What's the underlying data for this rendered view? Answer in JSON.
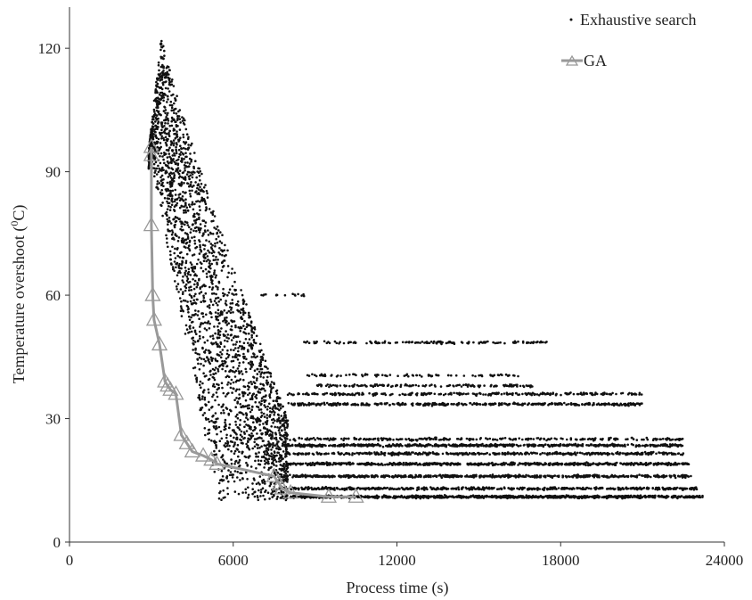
{
  "chart_data": {
    "type": "scatter",
    "title": "",
    "xlabel": "Process time (s)",
    "ylabel_main": "Temperature overshoot (",
    "ylabel_sup": "0",
    "ylabel_end": "C)",
    "xlim": [
      0,
      24000
    ],
    "ylim": [
      0,
      130
    ],
    "x_ticks": [
      0,
      6000,
      12000,
      18000,
      24000
    ],
    "y_ticks": [
      0,
      30,
      60,
      90,
      120
    ],
    "x_tick_labels": [
      "0",
      "6000",
      "12000",
      "18000",
      "24000"
    ],
    "y_tick_labels": [
      "0",
      "30",
      "60",
      "90",
      "120"
    ],
    "grid": false,
    "legend_position": "top-right",
    "series": [
      {
        "name": "Exhaustive search",
        "marker": "dot",
        "color": "#111111",
        "clusters": [
          {
            "desc": "main spread",
            "x_range": [
              2900,
              8000
            ],
            "y_range": [
              10,
              123
            ],
            "count": 2600
          },
          {
            "desc": "band",
            "x_range": [
              7800,
              23200
            ],
            "y_level": 11,
            "count": 900
          },
          {
            "desc": "band",
            "x_range": [
              7800,
              23000
            ],
            "y_level": 13,
            "count": 500
          },
          {
            "desc": "band",
            "x_range": [
              7800,
              22800
            ],
            "y_level": 16,
            "count": 600
          },
          {
            "desc": "band",
            "x_range": [
              7800,
              22700
            ],
            "y_level": 19,
            "count": 600
          },
          {
            "desc": "band",
            "x_range": [
              7800,
              22500
            ],
            "y_level": 21.5,
            "count": 450
          },
          {
            "desc": "band",
            "x_range": [
              7800,
              22500
            ],
            "y_level": 23.5,
            "count": 600
          },
          {
            "desc": "band",
            "x_range": [
              7800,
              22500
            ],
            "y_level": 25,
            "count": 250
          },
          {
            "desc": "band",
            "x_range": [
              8000,
              21000
            ],
            "y_level": 33.5,
            "count": 400
          },
          {
            "desc": "band",
            "x_range": [
              8000,
              21000
            ],
            "y_level": 36,
            "count": 250
          },
          {
            "desc": "band",
            "x_range": [
              9000,
              17000
            ],
            "y_level": 38,
            "count": 140
          },
          {
            "desc": "band",
            "x_range": [
              8500,
              16500
            ],
            "y_level": 40.5,
            "count": 90
          },
          {
            "desc": "band",
            "x_range": [
              8500,
              17500
            ],
            "y_level": 48.5,
            "count": 140
          },
          {
            "desc": "band",
            "x_range": [
              7000,
              8600
            ],
            "y_level": 60,
            "count": 15
          }
        ]
      },
      {
        "name": "GA",
        "marker": "triangle",
        "color": "#999999",
        "x": [
          3000,
          3000,
          3000,
          3050,
          3100,
          3300,
          3500,
          3600,
          3700,
          3900,
          4100,
          4300,
          4500,
          4900,
          5200,
          5400,
          7500,
          7700,
          7800,
          8100,
          9500,
          10500
        ],
        "y": [
          96,
          94,
          77,
          60,
          54,
          48,
          39,
          38,
          37,
          36,
          26,
          24,
          22,
          21,
          20,
          19,
          16,
          14,
          13,
          12,
          11,
          11
        ]
      }
    ]
  }
}
